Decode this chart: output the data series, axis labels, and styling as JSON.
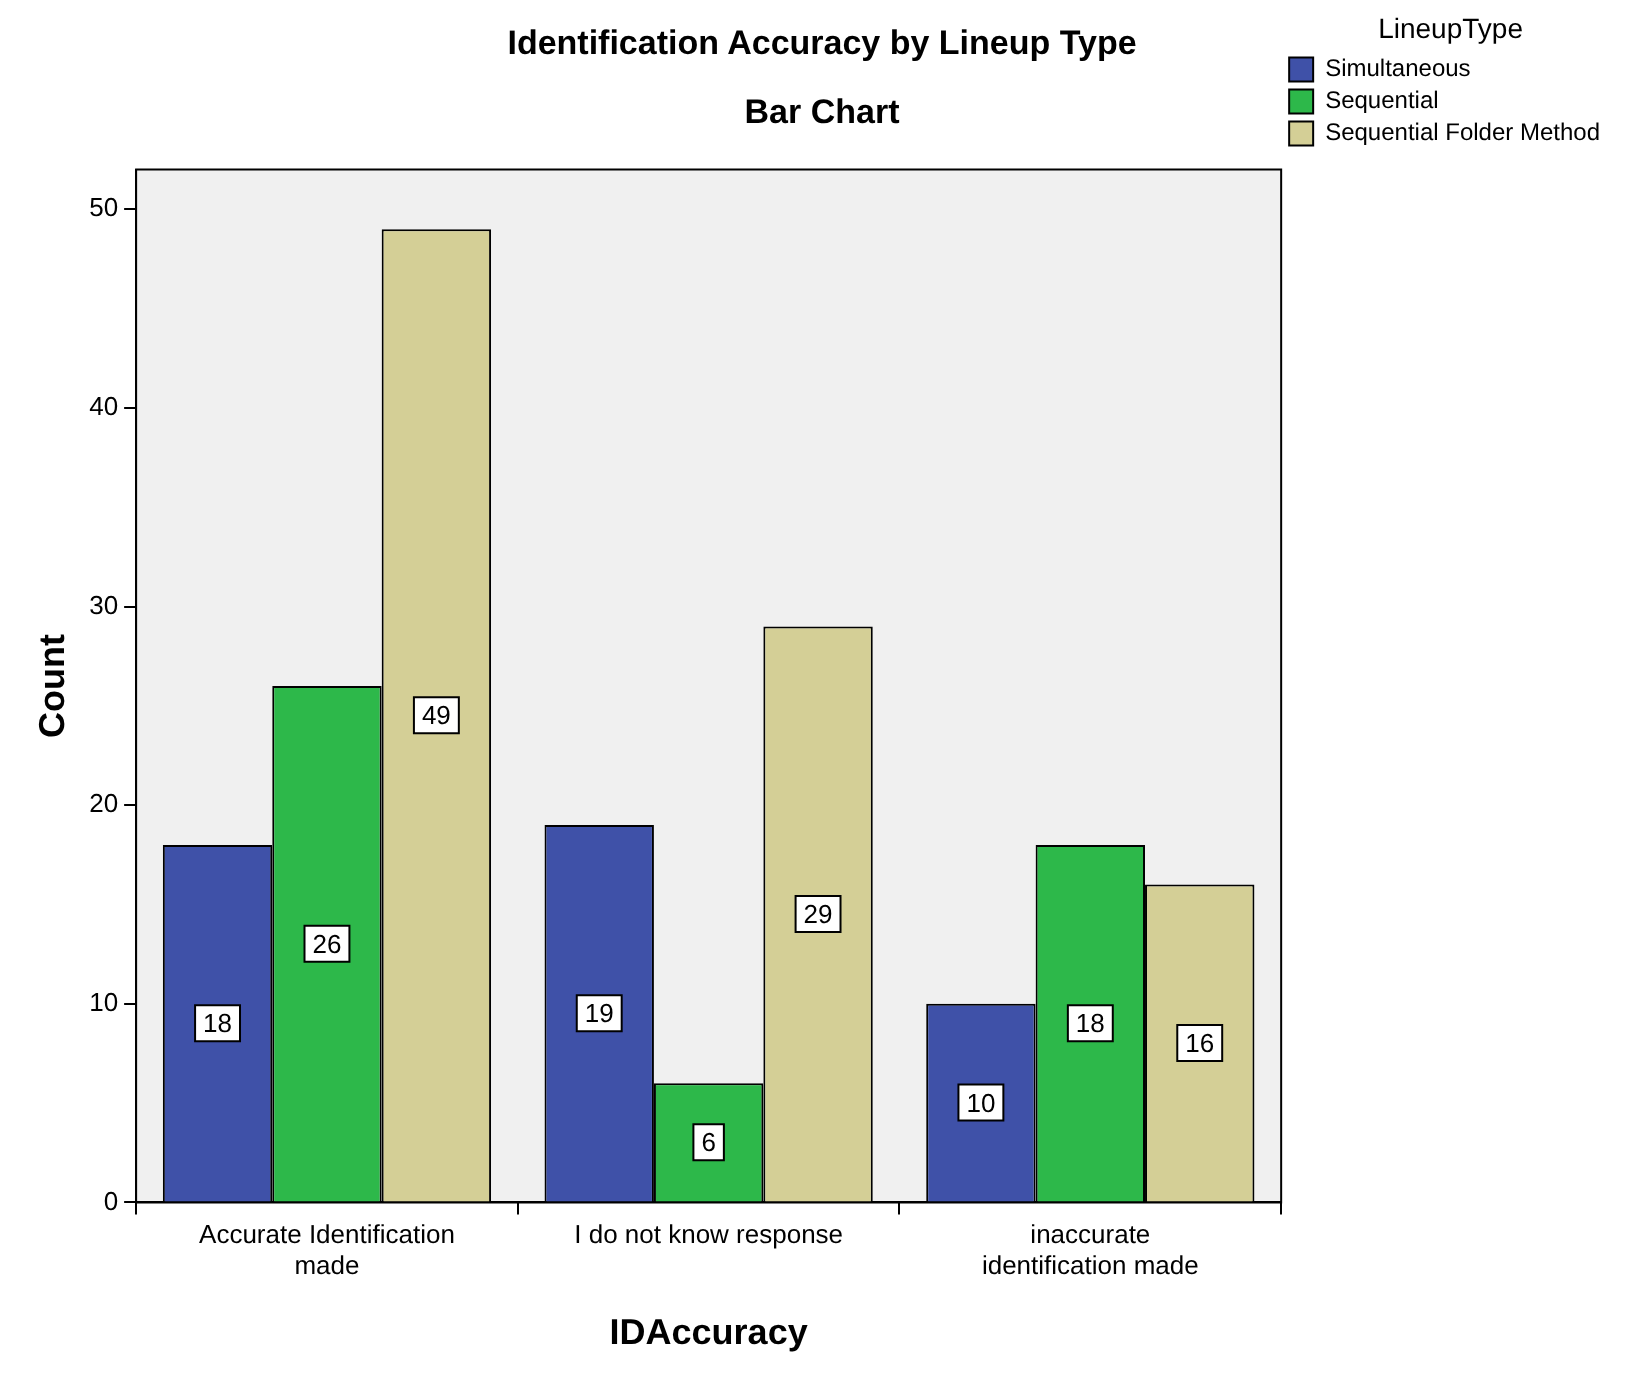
{
  "chart_data": {
    "type": "bar",
    "title": "Identification Accuracy by Lineup Type",
    "subtitle": "Bar Chart",
    "xlabel": "IDAccuracy",
    "ylabel": "Count",
    "legend_title": "LineupType",
    "categories": [
      "Accurate Identification made",
      "I do not know response",
      "inaccurate identification made"
    ],
    "series": [
      {
        "name": "Simultaneous",
        "color": "#3f51a8",
        "values": [
          18,
          19,
          10
        ]
      },
      {
        "name": "Sequential",
        "color": "#2db84a",
        "values": [
          26,
          6,
          18
        ]
      },
      {
        "name": "Sequential Folder Method",
        "color": "#d4cf96",
        "values": [
          49,
          29,
          16
        ]
      }
    ],
    "ylim": [
      0,
      52
    ],
    "yticks": [
      0,
      10,
      20,
      30,
      40,
      50
    ],
    "grid": false,
    "legend": "top right",
    "data_labels": true
  }
}
